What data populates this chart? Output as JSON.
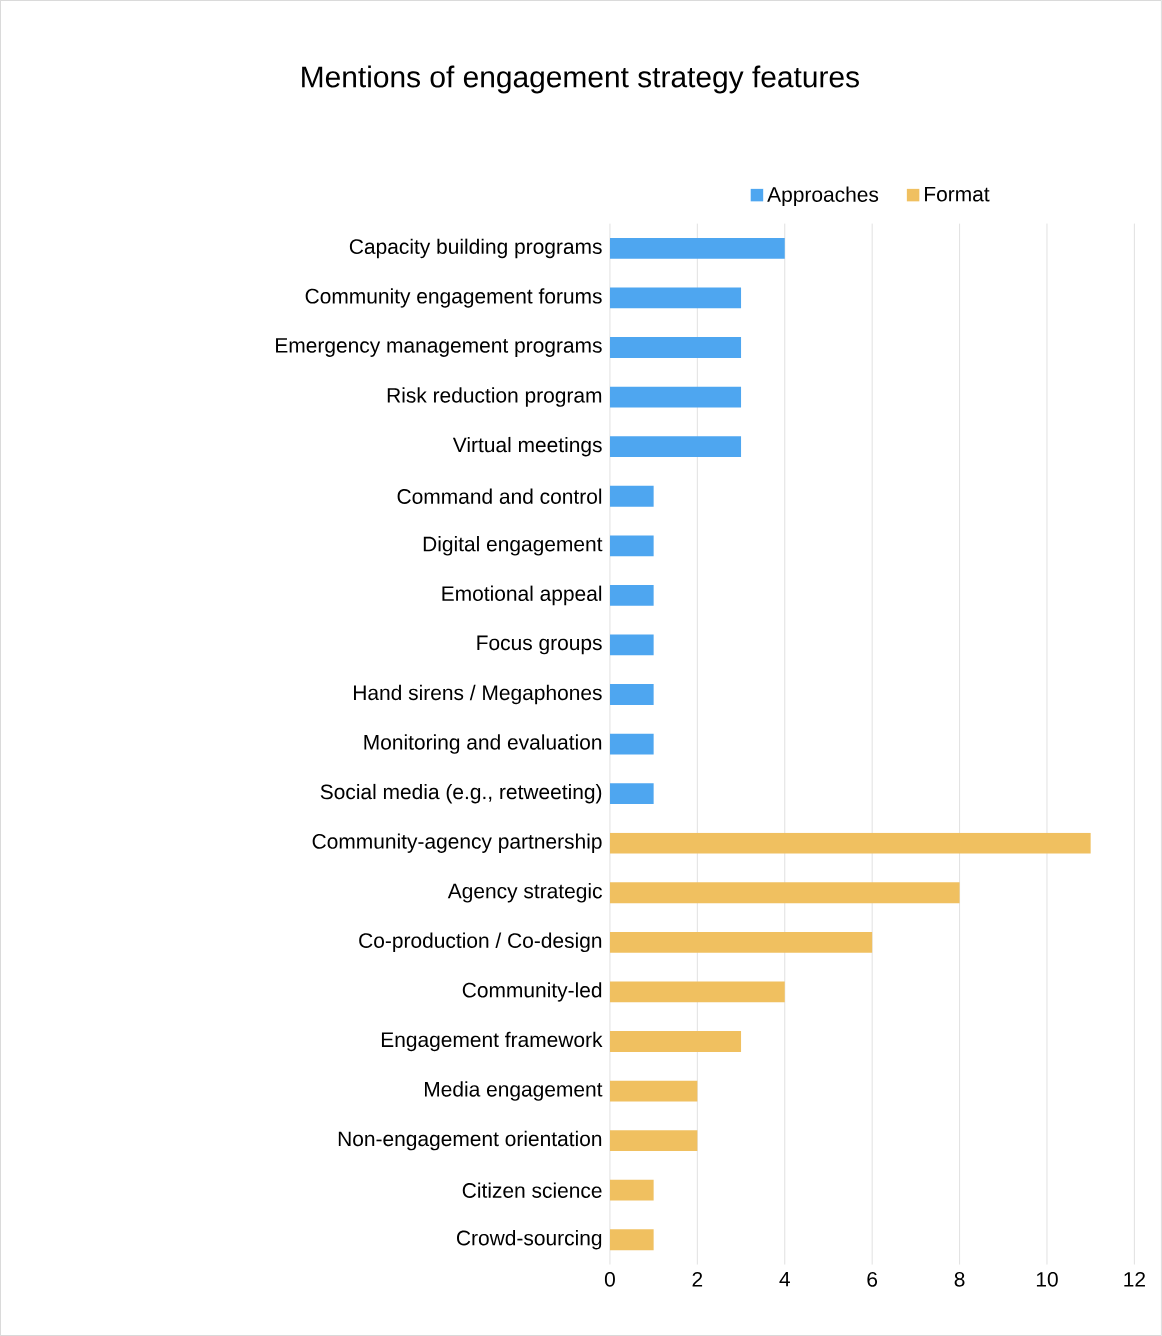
{
  "chart_data": {
    "type": "bar",
    "orientation": "horizontal",
    "title": "Mentions of engagement strategy features",
    "categories": [
      "Capacity building programs",
      "Community engagement forums",
      "Emergency management programs",
      "Risk reduction program",
      "Virtual meetings",
      "Command and control",
      "Digital engagement",
      "Emotional appeal",
      "Focus groups",
      "Hand sirens / Megaphones",
      "Monitoring and evaluation",
      "Social media (e.g., retweeting)",
      "Community-agency partnership",
      "Agency strategic",
      "Co-production / Co-design",
      "Community-led",
      "Engagement framework",
      "Media engagement",
      "Non-engagement orientation",
      "Citizen science",
      "Crowd-sourcing"
    ],
    "series": [
      {
        "name": "Approaches",
        "color": "#4ea6f0",
        "values": [
          4,
          3,
          3,
          3,
          3,
          1,
          1,
          1,
          1,
          1,
          1,
          1,
          null,
          null,
          null,
          null,
          null,
          null,
          null,
          null,
          null
        ]
      },
      {
        "name": "Format",
        "color": "#f0c060",
        "values": [
          null,
          null,
          null,
          null,
          null,
          null,
          null,
          null,
          null,
          null,
          null,
          null,
          11,
          8,
          6,
          4,
          3,
          2,
          2,
          1,
          1
        ]
      }
    ],
    "xlim": [
      0,
      12
    ],
    "xticks": [
      0,
      2,
      4,
      6,
      8,
      10,
      12
    ],
    "grid": "x",
    "legend": "top"
  }
}
